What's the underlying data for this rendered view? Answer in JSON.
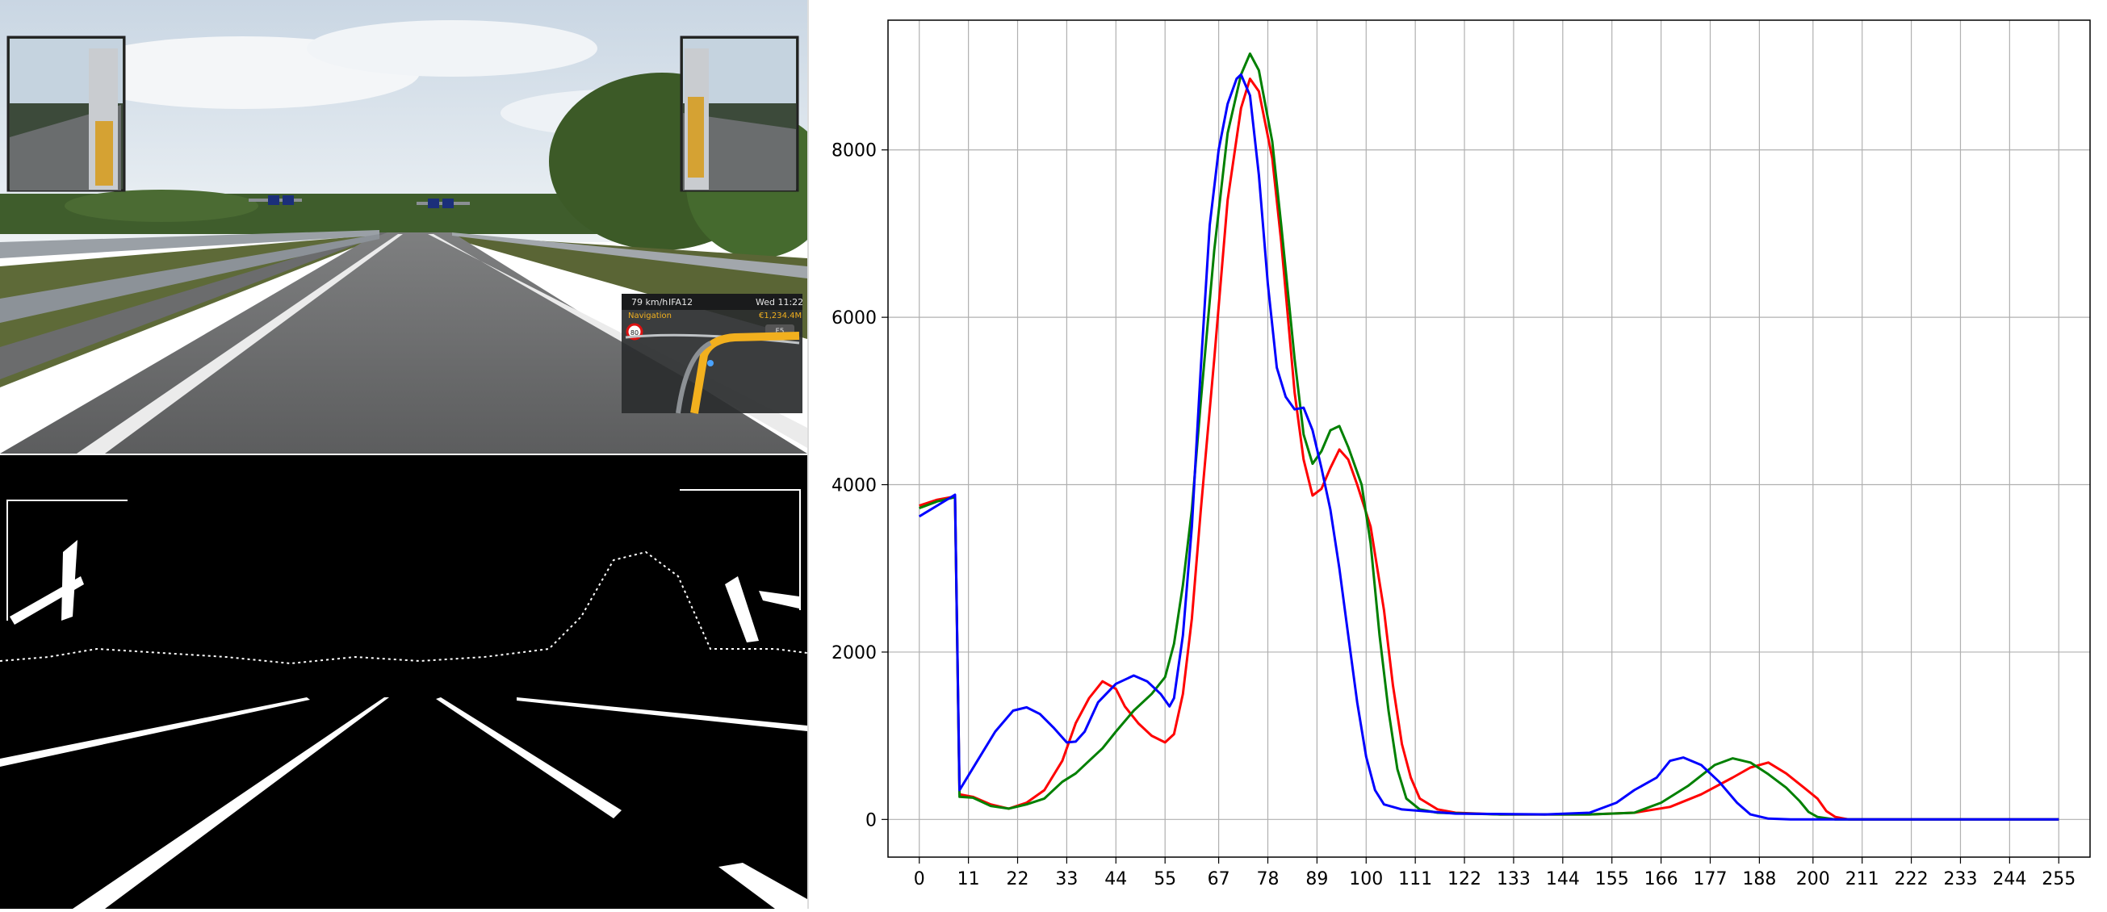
{
  "game": {
    "hud": {
      "speed": "79 km/h",
      "road": "IFA12",
      "time": "Wed 11:22",
      "nav_label": "Navigation",
      "money": "€1,234.4M",
      "speed_limit": "80",
      "zoom_key": "F5"
    }
  },
  "colors": {
    "red": "#ff0000",
    "green": "#008000",
    "blue": "#0000ff",
    "grid": "#b0b0b0"
  },
  "chart_data": {
    "type": "line",
    "title": "",
    "xlabel": "",
    "ylabel": "",
    "xlim": [
      -7,
      262
    ],
    "ylim": [
      -450,
      9550
    ],
    "grid": true,
    "legend": "none",
    "xticks": [
      0,
      11,
      22,
      33,
      44,
      55,
      67,
      78,
      89,
      100,
      111,
      122,
      133,
      144,
      155,
      166,
      177,
      188,
      200,
      211,
      222,
      233,
      244,
      255
    ],
    "yticks": [
      0,
      2000,
      4000,
      6000,
      8000
    ],
    "series": [
      {
        "color": "#ff0000",
        "points": [
          [
            0,
            3750
          ],
          [
            4,
            3820
          ],
          [
            8,
            3860
          ],
          [
            9,
            300
          ],
          [
            12,
            270
          ],
          [
            16,
            180
          ],
          [
            20,
            130
          ],
          [
            24,
            200
          ],
          [
            28,
            350
          ],
          [
            32,
            700
          ],
          [
            35,
            1150
          ],
          [
            38,
            1450
          ],
          [
            41,
            1650
          ],
          [
            44,
            1560
          ],
          [
            46,
            1350
          ],
          [
            49,
            1150
          ],
          [
            52,
            1000
          ],
          [
            55,
            920
          ],
          [
            57,
            1020
          ],
          [
            59,
            1500
          ],
          [
            61,
            2400
          ],
          [
            63,
            3700
          ],
          [
            66,
            5500
          ],
          [
            69,
            7400
          ],
          [
            72,
            8500
          ],
          [
            74,
            8850
          ],
          [
            76,
            8700
          ],
          [
            79,
            7900
          ],
          [
            81,
            6900
          ],
          [
            84,
            5100
          ],
          [
            86,
            4300
          ],
          [
            88,
            3870
          ],
          [
            90,
            3950
          ],
          [
            92,
            4200
          ],
          [
            94,
            4420
          ],
          [
            96,
            4300
          ],
          [
            98,
            4000
          ],
          [
            101,
            3500
          ],
          [
            104,
            2500
          ],
          [
            106,
            1600
          ],
          [
            108,
            900
          ],
          [
            110,
            500
          ],
          [
            112,
            250
          ],
          [
            116,
            120
          ],
          [
            120,
            80
          ],
          [
            130,
            60
          ],
          [
            150,
            60
          ],
          [
            160,
            80
          ],
          [
            168,
            150
          ],
          [
            175,
            300
          ],
          [
            182,
            500
          ],
          [
            186,
            620
          ],
          [
            190,
            680
          ],
          [
            194,
            550
          ],
          [
            198,
            380
          ],
          [
            201,
            250
          ],
          [
            203,
            100
          ],
          [
            205,
            30
          ],
          [
            208,
            0
          ],
          [
            255,
            0
          ]
        ]
      },
      {
        "color": "#008000",
        "points": [
          [
            0,
            3720
          ],
          [
            4,
            3800
          ],
          [
            8,
            3850
          ],
          [
            9,
            270
          ],
          [
            12,
            260
          ],
          [
            16,
            160
          ],
          [
            20,
            130
          ],
          [
            24,
            180
          ],
          [
            28,
            250
          ],
          [
            32,
            450
          ],
          [
            35,
            550
          ],
          [
            38,
            700
          ],
          [
            41,
            850
          ],
          [
            44,
            1050
          ],
          [
            48,
            1300
          ],
          [
            52,
            1500
          ],
          [
            55,
            1700
          ],
          [
            57,
            2100
          ],
          [
            59,
            2800
          ],
          [
            61,
            3700
          ],
          [
            63,
            5000
          ],
          [
            66,
            6800
          ],
          [
            69,
            8200
          ],
          [
            72,
            8900
          ],
          [
            74,
            9150
          ],
          [
            76,
            8950
          ],
          [
            79,
            8100
          ],
          [
            81,
            7100
          ],
          [
            84,
            5500
          ],
          [
            86,
            4600
          ],
          [
            88,
            4250
          ],
          [
            90,
            4400
          ],
          [
            92,
            4650
          ],
          [
            94,
            4700
          ],
          [
            96,
            4450
          ],
          [
            99,
            4000
          ],
          [
            101,
            3300
          ],
          [
            103,
            2200
          ],
          [
            105,
            1300
          ],
          [
            107,
            600
          ],
          [
            109,
            250
          ],
          [
            112,
            120
          ],
          [
            116,
            80
          ],
          [
            130,
            60
          ],
          [
            150,
            60
          ],
          [
            160,
            80
          ],
          [
            166,
            200
          ],
          [
            172,
            400
          ],
          [
            178,
            650
          ],
          [
            182,
            730
          ],
          [
            186,
            680
          ],
          [
            190,
            540
          ],
          [
            194,
            380
          ],
          [
            197,
            220
          ],
          [
            199,
            90
          ],
          [
            201,
            30
          ],
          [
            205,
            0
          ],
          [
            255,
            0
          ]
        ]
      },
      {
        "color": "#0000ff",
        "points": [
          [
            0,
            3620
          ],
          [
            4,
            3750
          ],
          [
            8,
            3880
          ],
          [
            9,
            350
          ],
          [
            13,
            700
          ],
          [
            17,
            1050
          ],
          [
            21,
            1300
          ],
          [
            24,
            1340
          ],
          [
            27,
            1260
          ],
          [
            30,
            1100
          ],
          [
            33,
            920
          ],
          [
            35,
            930
          ],
          [
            37,
            1050
          ],
          [
            40,
            1400
          ],
          [
            44,
            1620
          ],
          [
            48,
            1720
          ],
          [
            51,
            1650
          ],
          [
            54,
            1500
          ],
          [
            56,
            1350
          ],
          [
            57,
            1450
          ],
          [
            59,
            2200
          ],
          [
            61,
            3500
          ],
          [
            63,
            5400
          ],
          [
            65,
            7100
          ],
          [
            67,
            8000
          ],
          [
            69,
            8550
          ],
          [
            71,
            8850
          ],
          [
            72,
            8900
          ],
          [
            74,
            8650
          ],
          [
            76,
            7700
          ],
          [
            78,
            6400
          ],
          [
            80,
            5400
          ],
          [
            82,
            5050
          ],
          [
            84,
            4900
          ],
          [
            86,
            4920
          ],
          [
            88,
            4650
          ],
          [
            90,
            4200
          ],
          [
            92,
            3700
          ],
          [
            94,
            3000
          ],
          [
            96,
            2200
          ],
          [
            98,
            1400
          ],
          [
            100,
            750
          ],
          [
            102,
            350
          ],
          [
            104,
            180
          ],
          [
            108,
            120
          ],
          [
            120,
            70
          ],
          [
            140,
            60
          ],
          [
            150,
            80
          ],
          [
            156,
            200
          ],
          [
            160,
            350
          ],
          [
            165,
            500
          ],
          [
            168,
            700
          ],
          [
            171,
            740
          ],
          [
            175,
            650
          ],
          [
            179,
            450
          ],
          [
            183,
            200
          ],
          [
            186,
            60
          ],
          [
            190,
            10
          ],
          [
            195,
            0
          ],
          [
            255,
            0
          ]
        ]
      }
    ]
  }
}
